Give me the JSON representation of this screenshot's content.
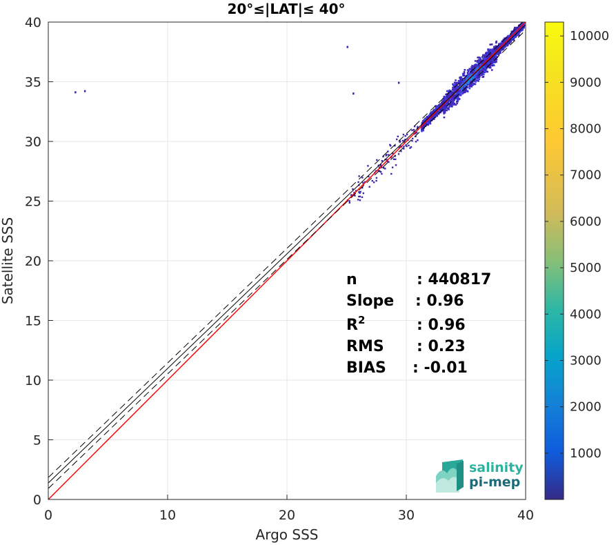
{
  "chart_data": {
    "type": "heatmap",
    "title": "20°≤|LAT|≤ 40°",
    "xlabel": "Argo SSS",
    "ylabel": "Satellite SSS",
    "xlim": [
      0,
      40
    ],
    "ylim": [
      0,
      40
    ],
    "xticks": [
      "0",
      "10",
      "20",
      "30",
      "40"
    ],
    "yticks": [
      "0",
      "5",
      "10",
      "15",
      "20",
      "25",
      "30",
      "35",
      "40"
    ],
    "grid": true,
    "colorbar": {
      "ticks": [
        "1000",
        "2000",
        "3000",
        "4000",
        "5000",
        "6000",
        "7000",
        "8000",
        "9000",
        "10000"
      ],
      "tick_values": [
        1000,
        2000,
        3000,
        4000,
        5000,
        6000,
        7000,
        8000,
        9000,
        10000
      ],
      "range": [
        1,
        10300
      ],
      "colormap": "parula"
    },
    "lines": [
      {
        "type": "identity",
        "color": "#ff0000",
        "slope": 1,
        "intercept": 0
      },
      {
        "type": "regression",
        "color": "#000000",
        "slope": 0.96,
        "intercept": 1.38,
        "style": "solid"
      },
      {
        "type": "regression-upper",
        "color": "#000000",
        "slope": 0.96,
        "intercept": 1.84,
        "style": "dashed"
      },
      {
        "type": "regression-lower",
        "color": "#000000",
        "slope": 0.96,
        "intercept": 0.92,
        "style": "dashed"
      }
    ],
    "density": {
      "main_cluster": {
        "x_range": [
          31,
          40
        ],
        "y_range": [
          30,
          40
        ],
        "peak_at": [
          35.3,
          35.4
        ]
      },
      "sparse_tail": {
        "x_range": [
          25,
          31
        ],
        "y_range": [
          26,
          31.5
        ]
      },
      "outliers": [
        [
          2.2,
          34.2
        ],
        [
          3.0,
          34.3
        ],
        [
          25.0,
          38.0
        ],
        [
          25.5,
          34.1
        ],
        [
          29.3,
          35.0
        ]
      ]
    },
    "stats": [
      {
        "label": "n",
        "value": ": 440817"
      },
      {
        "label": "Slope",
        "value": ": 0.96"
      },
      {
        "label": "R",
        "sup": "2",
        "value": ": 0.96"
      },
      {
        "label": "RMS",
        "value": ": 0.23"
      },
      {
        "label": "BIAS",
        "value": ": -0.01"
      }
    ]
  },
  "logo": {
    "line1": "salinity",
    "line2": "pi-mep"
  }
}
